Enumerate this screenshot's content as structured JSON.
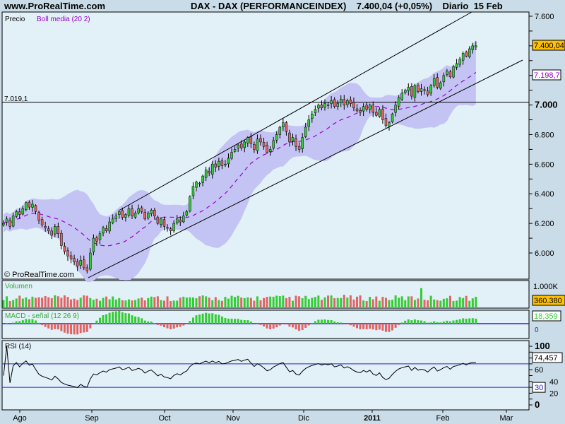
{
  "header": {
    "site": "www.ProRealTime.com",
    "title": "DAX - DAX (PERFORMANCEINDEX)    7.400,04 (+0,05%)    Diario  15 Feb"
  },
  "main": {
    "label_price": "Precio",
    "label_boll": "Boll media (20 2)",
    "watermark": "© ProRealTime.com",
    "hline_label": "7.019,1",
    "last_price": "7.400,04",
    "boll_value": "7.198,7",
    "ticks": [
      "7.600",
      "7.000",
      "6.800",
      "6.600",
      "6.400",
      "6.200",
      "6.000"
    ]
  },
  "volume": {
    "label": "Volumen",
    "max_label": "1.000K",
    "last": "360.380"
  },
  "macd": {
    "label": "MACD - señal (12 26 9)",
    "last": "18,359",
    "zero": "0"
  },
  "rsi": {
    "label": "RSI (14)",
    "last": "74,457",
    "ticks": [
      "100",
      "60",
      "40",
      "30",
      "20",
      "0"
    ]
  },
  "colors": {
    "up": "#33cc33",
    "down": "#e06464",
    "band": "#c4c4f4",
    "mid": "#9900cc",
    "ref": "#2222cc",
    "accent": "#ffc000"
  },
  "chart_data": {
    "type": "candlestick",
    "xticks": [
      "Ago",
      "Sep",
      "Oct",
      "Nov",
      "Dic",
      "2011",
      "Feb",
      "Mar"
    ],
    "horizontal_line": 7019.1,
    "ylim": [
      5850,
      7620
    ],
    "close": [
      6200,
      6230,
      6180,
      6250,
      6280,
      6260,
      6300,
      6340,
      6310,
      6330,
      6280,
      6220,
      6190,
      6170,
      6150,
      6120,
      6180,
      6130,
      6050,
      6010,
      5980,
      5960,
      5940,
      5910,
      5950,
      5900,
      5880,
      6000,
      6100,
      6080,
      6130,
      6170,
      6150,
      6210,
      6230,
      6250,
      6280,
      6240,
      6260,
      6300,
      6250,
      6270,
      6300,
      6280,
      6230,
      6270,
      6290,
      6250,
      6200,
      6230,
      6180,
      6170,
      6150,
      6200,
      6230,
      6210,
      6250,
      6280,
      6380,
      6450,
      6480,
      6470,
      6520,
      6560,
      6540,
      6600,
      6580,
      6620,
      6590,
      6600,
      6640,
      6680,
      6700,
      6730,
      6710,
      6750,
      6780,
      6740,
      6700,
      6770,
      6750,
      6720,
      6680,
      6700,
      6760,
      6800,
      6850,
      6880,
      6820,
      6750,
      6780,
      6720,
      6700,
      6780,
      6850,
      6900,
      6940,
      6970,
      7000,
      6980,
      7010,
      7000,
      7030,
      6990,
      7010,
      7040,
      7000,
      7030,
      7010,
      6980,
      6960,
      6950,
      6990,
      6970,
      7000,
      6950,
      6930,
      6970,
      6900,
      6860,
      6880,
      6940,
      7000,
      7050,
      7080,
      7100,
      7120,
      7060,
      7130,
      7090,
      7110,
      7100,
      7070,
      7130,
      7180,
      7120,
      7150,
      7200,
      7230,
      7190,
      7260,
      7280,
      7310,
      7350,
      7330,
      7380,
      7400,
      7400
    ]
  }
}
